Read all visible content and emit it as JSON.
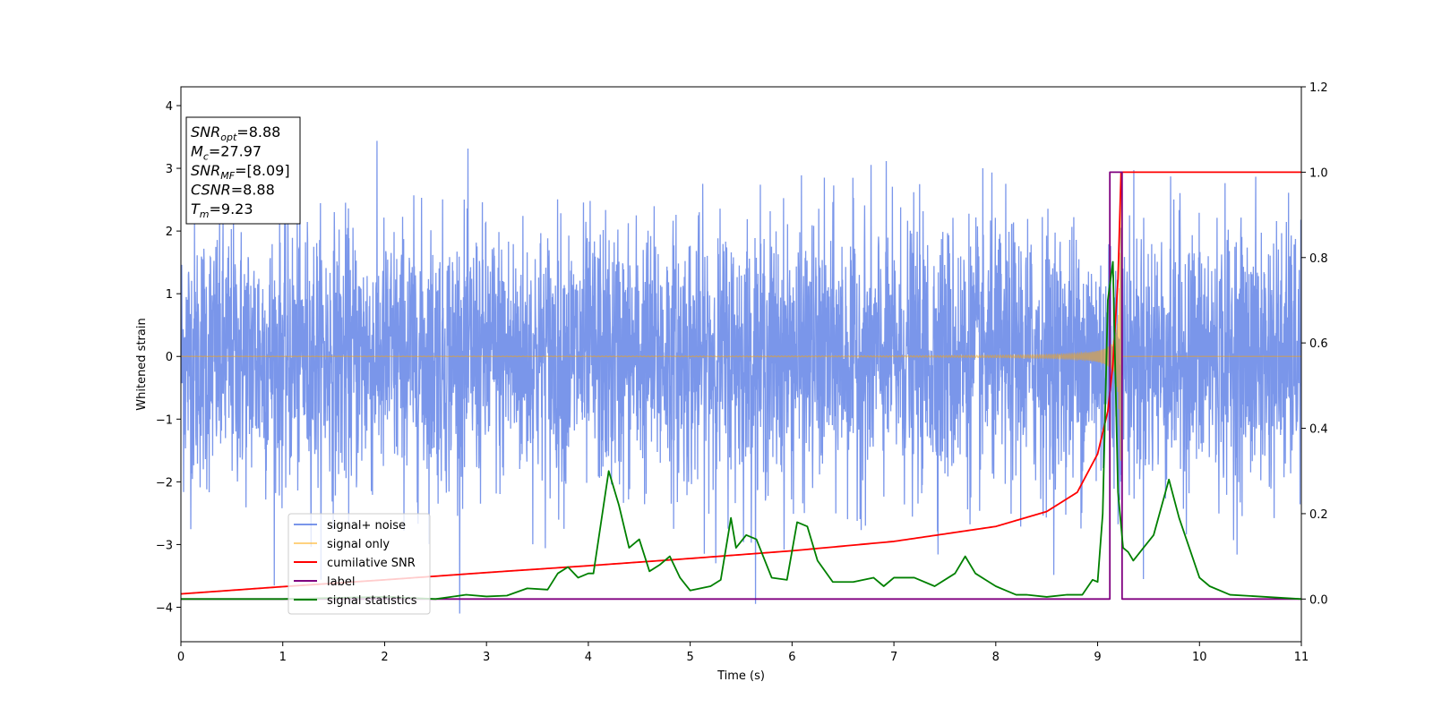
{
  "chart_data": {
    "type": "line",
    "title": "",
    "xlabel": "Time (s)",
    "ylabel": "Whitened strain",
    "y2label": "",
    "xlim": [
      0,
      11
    ],
    "ylim": [
      -4.55,
      4.3
    ],
    "y2lim": [
      -0.1,
      1.2
    ],
    "xticks": [
      0,
      1,
      2,
      3,
      4,
      5,
      6,
      7,
      8,
      9,
      10,
      11
    ],
    "yticks": [
      -4,
      -3,
      -2,
      -1,
      0,
      1,
      2,
      3,
      4
    ],
    "yticklabels": [
      "−4",
      "−3",
      "−2",
      "−1",
      "0",
      "1",
      "2",
      "3",
      "4"
    ],
    "y2ticks": [
      0.0,
      0.2,
      0.4,
      0.6,
      0.8,
      1.0,
      1.2
    ],
    "y2ticklabels": [
      "0.0",
      "0.2",
      "0.4",
      "0.6",
      "0.8",
      "1.0",
      "1.2"
    ],
    "grid": false,
    "legend_placement": "lower-left",
    "annotation": {
      "lines": [
        {
          "main": "SNR",
          "sub": "opt",
          "rest": "=8.88"
        },
        {
          "main": "M",
          "sub": "c",
          "rest": "=27.97"
        },
        {
          "main": "SNR",
          "sub": "MF",
          "rest": "=[8.09]"
        },
        {
          "main": "CSNR",
          "sub": "",
          "rest": "=8.88"
        },
        {
          "main": "T",
          "sub": "m",
          "rest": "=9.23"
        }
      ]
    },
    "series": [
      {
        "name": "signal+ noise",
        "axis": "left",
        "color": "#4169e1",
        "style": "noise",
        "amplitude_range": [
          -4.1,
          3.75
        ],
        "noise_sigma": 1.0,
        "x_range": [
          0,
          11
        ]
      },
      {
        "name": "signal only",
        "axis": "left",
        "color": "#ffa500",
        "style": "chirp",
        "merger_time": 9.23,
        "peak_amplitude": 3.0,
        "x_range": [
          0,
          11
        ]
      },
      {
        "name": "cumilative SNR",
        "axis": "right",
        "color": "#ff0000",
        "x": [
          0,
          1,
          2,
          3,
          4,
          5,
          6,
          7,
          8,
          8.5,
          8.8,
          9.0,
          9.1,
          9.15,
          9.2,
          9.23,
          9.25,
          11
        ],
        "values": [
          0.012,
          0.029,
          0.045,
          0.062,
          0.078,
          0.095,
          0.113,
          0.135,
          0.17,
          0.205,
          0.25,
          0.34,
          0.44,
          0.55,
          0.75,
          1.0,
          1.0,
          1.0
        ]
      },
      {
        "name": "label",
        "axis": "right",
        "color": "#800080",
        "x": [
          0,
          9.12,
          9.12,
          9.24,
          9.24,
          11
        ],
        "values": [
          0.0,
          0.0,
          1.0,
          1.0,
          0.0,
          0.0
        ]
      },
      {
        "name": "signal statistics",
        "axis": "right",
        "color": "#008000",
        "x": [
          0,
          1,
          2,
          2.5,
          2.8,
          3.0,
          3.2,
          3.4,
          3.6,
          3.7,
          3.8,
          3.9,
          4.0,
          4.05,
          4.2,
          4.3,
          4.4,
          4.5,
          4.6,
          4.7,
          4.8,
          4.9,
          5.0,
          5.2,
          5.3,
          5.4,
          5.45,
          5.55,
          5.65,
          5.8,
          5.95,
          6.05,
          6.15,
          6.25,
          6.4,
          6.6,
          6.8,
          6.9,
          7.0,
          7.2,
          7.4,
          7.6,
          7.7,
          7.8,
          7.9,
          8.0,
          8.1,
          8.2,
          8.3,
          8.5,
          8.7,
          8.85,
          8.95,
          9.0,
          9.05,
          9.1,
          9.15,
          9.2,
          9.25,
          9.3,
          9.35,
          9.45,
          9.55,
          9.7,
          9.8,
          9.9,
          10.0,
          10.1,
          10.3,
          11
        ],
        "values": [
          0.0,
          0.0,
          0.005,
          0.0,
          0.01,
          0.006,
          0.008,
          0.025,
          0.022,
          0.06,
          0.075,
          0.05,
          0.06,
          0.06,
          0.3,
          0.22,
          0.12,
          0.14,
          0.065,
          0.08,
          0.1,
          0.05,
          0.02,
          0.03,
          0.045,
          0.19,
          0.12,
          0.15,
          0.14,
          0.05,
          0.045,
          0.18,
          0.17,
          0.09,
          0.04,
          0.04,
          0.05,
          0.03,
          0.05,
          0.05,
          0.03,
          0.06,
          0.1,
          0.06,
          0.045,
          0.03,
          0.02,
          0.01,
          0.01,
          0.005,
          0.01,
          0.01,
          0.045,
          0.04,
          0.2,
          0.7,
          0.79,
          0.25,
          0.12,
          0.11,
          0.09,
          0.12,
          0.15,
          0.28,
          0.19,
          0.12,
          0.05,
          0.03,
          0.01,
          0.0
        ]
      }
    ]
  }
}
